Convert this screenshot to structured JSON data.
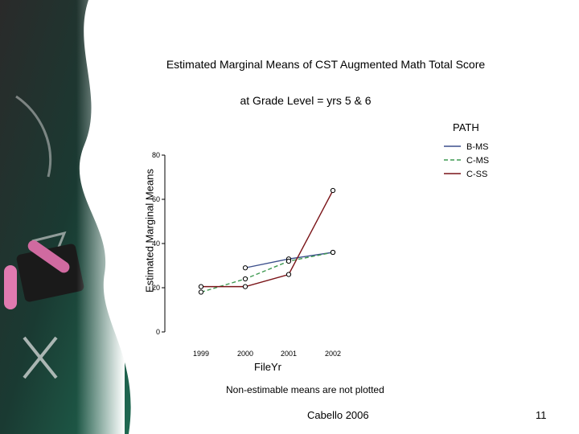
{
  "slide": {
    "author": "Cabello 2006",
    "number": "11",
    "footnote": "Non-estimable means are not plotted"
  },
  "chart_data": {
    "type": "line",
    "title": "Estimated Marginal Means of CST Augmented Math Total Score",
    "subtitle": "at Grade Level = yrs 5 & 6",
    "xlabel": "FileYr",
    "ylabel": "Estimated Marginal Means",
    "legend_title": "PATH",
    "legend_position": "top-right",
    "categories": [
      "1999",
      "2000",
      "2001",
      "2002"
    ],
    "y_ticks": [
      "0",
      "20",
      "40",
      "60",
      "80"
    ],
    "ylim": [
      0,
      80
    ],
    "grid": false,
    "series": [
      {
        "name": "B-MS",
        "color": "#3c4f8c",
        "dash": "solid",
        "values": [
          null,
          29,
          33,
          36
        ]
      },
      {
        "name": "C-MS",
        "color": "#3f9a52",
        "dash": "dashed",
        "values": [
          18,
          24,
          32,
          36
        ]
      },
      {
        "name": "C-SS",
        "color": "#7a1418",
        "dash": "solid",
        "values": [
          20.5,
          20.5,
          26,
          64
        ]
      }
    ]
  }
}
